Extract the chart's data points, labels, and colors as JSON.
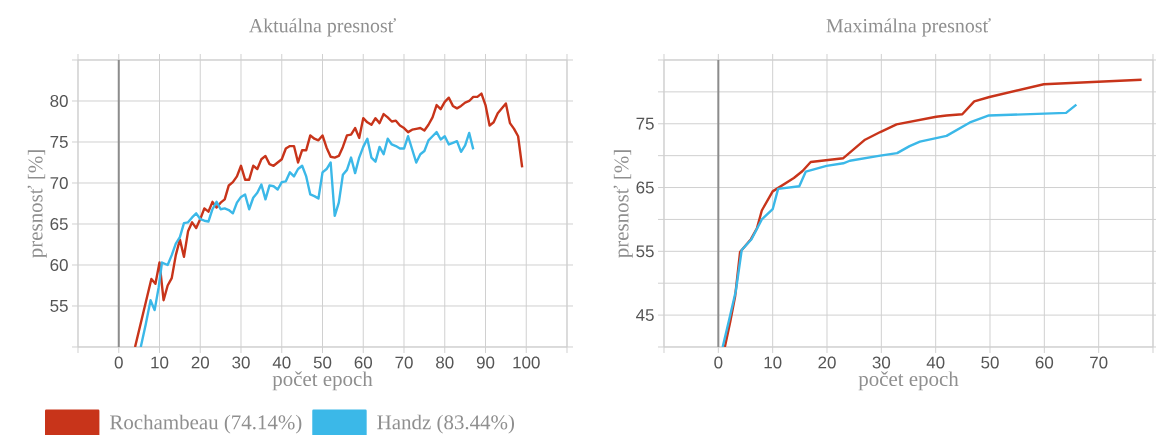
{
  "chart_data": [
    {
      "type": "line",
      "title": "Aktuálna presnosť",
      "xlabel": "počet epoch",
      "ylabel": "presnosť [%]",
      "xlim": [
        -10,
        110
      ],
      "ylim": [
        50,
        85
      ],
      "xticks": [
        {
          "value": -10,
          "label": null
        },
        0,
        10,
        20,
        30,
        40,
        50,
        60,
        70,
        80,
        90,
        100,
        {
          "value": 110,
          "label": null
        }
      ],
      "yticks": [
        {
          "value": 50,
          "label": null
        },
        55,
        60,
        65,
        70,
        75,
        80,
        {
          "value": 85,
          "label": null
        }
      ],
      "grid": true,
      "legend": "bottom",
      "ref_lines": [
        {
          "axis": "x",
          "value": 0,
          "color": "#8c8c8c"
        }
      ],
      "series": [
        {
          "name": "Rochambeau (74.14%)",
          "color": "#c8341a",
          "x": [
            4,
            8,
            9,
            10,
            11,
            12,
            13,
            14,
            15,
            16,
            17,
            18,
            19,
            20,
            21,
            22,
            23,
            24,
            25,
            26,
            27,
            28,
            29,
            30,
            31,
            32,
            33,
            34,
            35,
            36,
            37,
            38,
            39,
            40,
            41,
            42,
            43,
            44,
            45,
            46,
            47,
            48,
            49,
            50,
            51,
            52,
            53,
            54,
            55,
            56,
            57,
            58,
            59,
            60,
            61,
            62,
            63,
            64,
            65,
            66,
            67,
            68,
            69,
            70,
            71,
            72,
            73,
            74,
            75,
            76,
            77,
            78,
            79,
            80,
            81,
            82,
            83,
            84,
            85,
            86,
            87,
            88,
            89,
            90,
            91,
            92,
            93,
            94,
            95,
            96,
            97,
            98,
            99
          ],
          "values": [
            50,
            58.3,
            57.7,
            60.3,
            55.7,
            57.5,
            58.4,
            61.2,
            63.1,
            61,
            64.1,
            65.2,
            64.5,
            65.6,
            66.9,
            66.5,
            67.7,
            67,
            67.6,
            68,
            69.7,
            70.1,
            70.8,
            72.1,
            70.4,
            70.4,
            72.1,
            71.7,
            72.9,
            73.3,
            72.3,
            72.1,
            72.5,
            72.9,
            74.2,
            74.5,
            74.5,
            72.5,
            74,
            74,
            75.8,
            75.4,
            75.2,
            75.8,
            74.3,
            73.2,
            73.1,
            73.3,
            74.4,
            75.8,
            75.9,
            76.7,
            75.5,
            77.9,
            77.4,
            77.1,
            77.9,
            77.3,
            78.4,
            78,
            77.5,
            77.6,
            77,
            76.7,
            76.2,
            76.5,
            76.6,
            76.7,
            76.4,
            77.1,
            78,
            79.5,
            79,
            79.9,
            80.4,
            79.4,
            79.1,
            79.4,
            79.8,
            80,
            80.5,
            80.5,
            80.9,
            79.5,
            77,
            77.4,
            78.5,
            79.1,
            79.7,
            77.3,
            76.6,
            75.7,
            71.9
          ]
        },
        {
          "name": "Handz (83.44%)",
          "color": "#3bb8e8",
          "x": [
            5.4,
            6.6,
            7.8,
            8.8,
            9.8,
            10.6,
            12,
            13,
            14,
            15,
            16,
            17,
            18,
            19,
            20,
            21,
            22,
            23,
            24,
            25,
            26,
            27,
            28,
            29,
            30,
            31,
            32,
            33,
            34,
            35,
            36,
            37,
            38,
            39,
            40,
            41,
            42,
            43,
            44,
            45,
            46,
            47,
            48,
            49,
            50,
            51,
            52,
            53,
            54,
            55,
            56,
            57,
            58,
            59,
            60,
            61,
            62,
            63,
            64,
            65,
            66,
            67,
            68,
            69,
            70,
            71,
            72,
            73,
            74,
            75,
            76,
            77,
            78,
            79,
            80,
            81,
            82,
            83,
            84,
            85,
            86,
            87
          ],
          "values": [
            50,
            52.7,
            55.7,
            54.5,
            57.3,
            60.3,
            60,
            61.2,
            62.6,
            63.4,
            65.1,
            65.2,
            65.8,
            66.3,
            65.6,
            65.4,
            65.3,
            66.8,
            67.7,
            66.8,
            66.9,
            66.7,
            66.3,
            67.6,
            68.3,
            68.6,
            66.8,
            68.2,
            68.8,
            69.8,
            68,
            69.7,
            69.6,
            69.2,
            70.1,
            70.2,
            71.3,
            70.8,
            71.7,
            72.1,
            70.8,
            68.6,
            68.4,
            68.1,
            71.3,
            71.7,
            72.5,
            66,
            67.6,
            71,
            71.6,
            73.1,
            71.2,
            73.1,
            74.4,
            75.4,
            73.1,
            72.6,
            74.4,
            73.5,
            75.4,
            74.7,
            74.5,
            74.2,
            74.2,
            75.7,
            74.1,
            72.5,
            73.5,
            73.9,
            75.2,
            75.7,
            76.2,
            75.3,
            75.7,
            74.7,
            74.9,
            75.1,
            73.8,
            74.6,
            76.1,
            74.1
          ]
        }
      ]
    },
    {
      "type": "line",
      "title": "Maximálna presnosť",
      "xlabel": "počet epoch",
      "ylabel": "presnosť [%]",
      "xlim": [
        -10,
        80
      ],
      "ylim": [
        40,
        85
      ],
      "xticks": [
        {
          "value": -10,
          "label": null
        },
        0,
        10,
        20,
        30,
        40,
        50,
        60,
        70,
        {
          "value": 80,
          "label": null
        }
      ],
      "yticks": [
        {
          "value": 40,
          "label": null
        },
        45,
        {
          "value": 50,
          "label": null
        },
        55,
        {
          "value": 60,
          "label": null
        },
        65,
        {
          "value": 70,
          "label": null
        },
        75,
        {
          "value": 80,
          "label": null
        },
        {
          "value": 85,
          "label": null
        }
      ],
      "grid": true,
      "ref_lines": [
        {
          "axis": "x",
          "value": 0,
          "color": "#8c8c8c"
        }
      ],
      "series": [
        {
          "color": "#c8341a",
          "x": [
            1.2,
            2.2,
            3.1,
            4,
            6,
            7.1,
            8,
            10,
            13.9,
            15.5,
            17,
            23,
            27,
            29.8,
            32.8,
            40.1,
            42,
            44.9,
            47.1,
            49.9,
            59.9,
            77.9
          ],
          "values": [
            40,
            44,
            48,
            54.9,
            56.9,
            58.6,
            61.4,
            64.4,
            66.5,
            67.6,
            69,
            69.6,
            72.5,
            73.7,
            74.9,
            76.1,
            76.3,
            76.5,
            78.5,
            79.2,
            81.2,
            81.9
          ]
        },
        {
          "color": "#3bb8e8",
          "x": [
            0.8,
            2,
            3.2,
            4.3,
            6.1,
            8,
            10,
            11,
            14.9,
            16.1,
            19.9,
            23,
            24.2,
            29.8,
            32.9,
            35.2,
            37.1,
            42,
            46.3,
            49.8,
            64,
            65.9
          ],
          "values": [
            40,
            44.3,
            48.7,
            55.2,
            56.9,
            60,
            61.6,
            64.8,
            65.2,
            67.5,
            68.4,
            68.8,
            69.2,
            70,
            70.4,
            71.5,
            72.2,
            73.1,
            75.2,
            76.3,
            76.7,
            78
          ]
        }
      ]
    }
  ]
}
